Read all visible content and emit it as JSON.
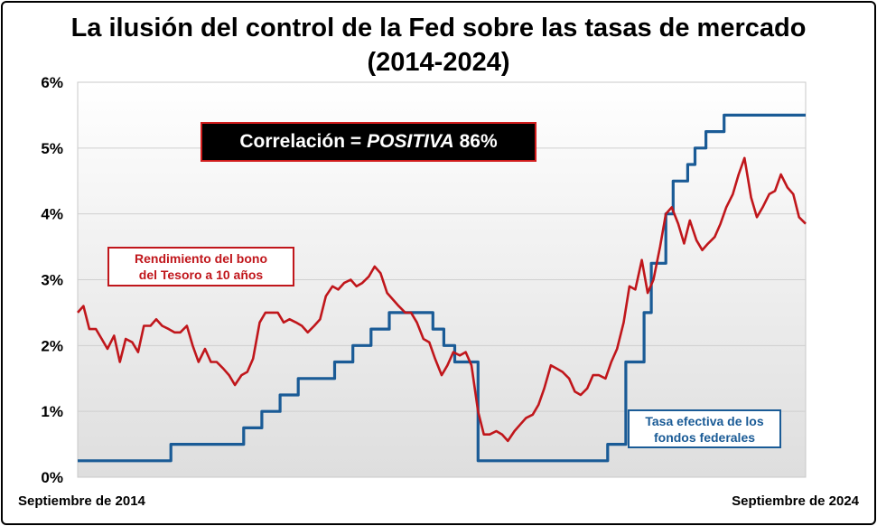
{
  "chart_data": {
    "type": "line",
    "title": "La ilusión del control de la Fed sobre las tasas de mercado\n(2014-2024)",
    "x_start_label": "Septiembre de 2014",
    "x_end_label": "Septiembre de 2024",
    "x_range": [
      2014.67,
      2024.67
    ],
    "ylim": [
      0,
      6
    ],
    "y_ticks": [
      "0%",
      "1%",
      "2%",
      "3%",
      "4%",
      "5%",
      "6%"
    ],
    "grid": "horizontal",
    "annotation": {
      "prefix": "Correlación = ",
      "emphasis": "POSITIVA",
      "suffix": " 86%"
    },
    "series": [
      {
        "name": "Rendimiento del bono del Tesoro a 10 años",
        "label_line1": "Rendimiento del bono",
        "label_line2": "del Tesoro a 10 años",
        "color": "#c0161b",
        "x": [
          2014.67,
          2014.75,
          2014.83,
          2014.92,
          2015.0,
          2015.08,
          2015.17,
          2015.25,
          2015.33,
          2015.42,
          2015.5,
          2015.58,
          2015.67,
          2015.75,
          2015.83,
          2015.92,
          2016.0,
          2016.08,
          2016.17,
          2016.25,
          2016.33,
          2016.42,
          2016.5,
          2016.58,
          2016.67,
          2016.75,
          2016.83,
          2016.92,
          2017.0,
          2017.08,
          2017.17,
          2017.25,
          2017.33,
          2017.42,
          2017.5,
          2017.58,
          2017.67,
          2017.75,
          2017.83,
          2017.92,
          2018.0,
          2018.08,
          2018.17,
          2018.25,
          2018.33,
          2018.42,
          2018.5,
          2018.58,
          2018.67,
          2018.75,
          2018.83,
          2018.92,
          2019.0,
          2019.08,
          2019.17,
          2019.25,
          2019.33,
          2019.42,
          2019.5,
          2019.58,
          2019.67,
          2019.75,
          2019.83,
          2019.92,
          2020.0,
          2020.08,
          2020.17,
          2020.25,
          2020.33,
          2020.42,
          2020.5,
          2020.58,
          2020.67,
          2020.75,
          2020.83,
          2020.92,
          2021.0,
          2021.08,
          2021.17,
          2021.25,
          2021.33,
          2021.42,
          2021.5,
          2021.58,
          2021.67,
          2021.75,
          2021.83,
          2021.92,
          2022.0,
          2022.08,
          2022.17,
          2022.25,
          2022.33,
          2022.42,
          2022.5,
          2022.58,
          2022.67,
          2022.75,
          2022.83,
          2022.92,
          2023.0,
          2023.08,
          2023.17,
          2023.25,
          2023.33,
          2023.42,
          2023.5,
          2023.58,
          2023.67,
          2023.75,
          2023.83,
          2023.92,
          2024.0,
          2024.08,
          2024.17,
          2024.25,
          2024.33,
          2024.42,
          2024.5,
          2024.58,
          2024.67
        ],
        "values": [
          2.5,
          2.6,
          2.25,
          2.25,
          2.1,
          1.95,
          2.15,
          1.75,
          2.1,
          2.05,
          1.9,
          2.3,
          2.3,
          2.4,
          2.3,
          2.25,
          2.2,
          2.2,
          2.3,
          2.0,
          1.75,
          1.95,
          1.75,
          1.75,
          1.65,
          1.55,
          1.4,
          1.55,
          1.6,
          1.8,
          2.35,
          2.5,
          2.5,
          2.5,
          2.35,
          2.4,
          2.35,
          2.3,
          2.2,
          2.3,
          2.4,
          2.75,
          2.9,
          2.85,
          2.95,
          3.0,
          2.9,
          2.95,
          3.05,
          3.2,
          3.1,
          2.8,
          2.7,
          2.6,
          2.5,
          2.5,
          2.35,
          2.1,
          2.05,
          1.8,
          1.55,
          1.7,
          1.9,
          1.85,
          1.9,
          1.7,
          1.0,
          0.65,
          0.65,
          0.7,
          0.65,
          0.55,
          0.7,
          0.8,
          0.9,
          0.95,
          1.1,
          1.35,
          1.7,
          1.65,
          1.6,
          1.5,
          1.3,
          1.25,
          1.35,
          1.55,
          1.55,
          1.5,
          1.75,
          1.95,
          2.35,
          2.9,
          2.85,
          3.3,
          2.8,
          3.0,
          3.5,
          4.0,
          4.1,
          3.85,
          3.55,
          3.9,
          3.6,
          3.45,
          3.55,
          3.65,
          3.85,
          4.1,
          4.3,
          4.6,
          4.85,
          4.25,
          3.95,
          4.1,
          4.3,
          4.35,
          4.6,
          4.4,
          4.3,
          3.95,
          3.85
        ]
      },
      {
        "name": "Tasa efectiva de los fondos federales",
        "label_line1": "Tasa efectiva de los",
        "label_line2": "fondos federales",
        "color": "#1a5b96",
        "x": [
          2014.67,
          2015.95,
          2015.95,
          2016.95,
          2016.95,
          2017.2,
          2017.2,
          2017.45,
          2017.45,
          2017.7,
          2017.7,
          2018.2,
          2018.2,
          2018.45,
          2018.45,
          2018.7,
          2018.7,
          2018.95,
          2018.95,
          2019.55,
          2019.55,
          2019.7,
          2019.7,
          2019.85,
          2019.85,
          2020.17,
          2020.17,
          2021.95,
          2021.95,
          2022.2,
          2022.2,
          2022.45,
          2022.45,
          2022.55,
          2022.55,
          2022.75,
          2022.75,
          2022.85,
          2022.85,
          2023.05,
          2023.05,
          2023.15,
          2023.15,
          2023.3,
          2023.3,
          2023.55,
          2023.55,
          2024.67
        ],
        "values": [
          0.25,
          0.25,
          0.5,
          0.5,
          0.75,
          0.75,
          1.0,
          1.0,
          1.25,
          1.25,
          1.5,
          1.5,
          1.75,
          1.75,
          2.0,
          2.0,
          2.25,
          2.25,
          2.5,
          2.5,
          2.25,
          2.25,
          2.0,
          2.0,
          1.75,
          1.75,
          0.25,
          0.25,
          0.5,
          0.5,
          1.75,
          1.75,
          2.5,
          2.5,
          3.25,
          3.25,
          4.0,
          4.0,
          4.5,
          4.5,
          4.75,
          4.75,
          5.0,
          5.0,
          5.25,
          5.25,
          5.5,
          5.5
        ]
      }
    ]
  }
}
